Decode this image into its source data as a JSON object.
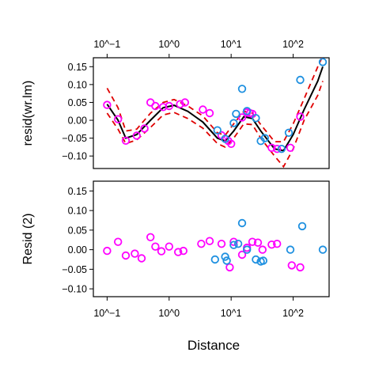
{
  "chart_data": {
    "type": "scatter",
    "xlabel": "Distance",
    "x_scale": "log10",
    "xlim": [
      0.06,
      380
    ],
    "x_ticks": [
      {
        "value": 0.1,
        "label": "10^−1"
      },
      {
        "value": 1,
        "label": "10^0"
      },
      {
        "value": 10,
        "label": "10^1"
      },
      {
        "value": 100,
        "label": "10^2"
      }
    ],
    "colors": {
      "series_a": "#ff00ff",
      "series_b": "#1e90e0",
      "fit": "#000000",
      "band": "#e00000"
    },
    "panels": [
      {
        "ylabel": "resid(wr.lm)",
        "ylim": [
          -0.135,
          0.175
        ],
        "y_ticks": [
          {
            "value": 0.15,
            "label": "0.15"
          },
          {
            "value": 0.1,
            "label": "0.10"
          },
          {
            "value": 0.05,
            "label": "0.05"
          },
          {
            "value": 0,
            "label": "0.00"
          },
          {
            "value": -0.05,
            "label": "−0.05"
          },
          {
            "value": -0.1,
            "label": "−0.10"
          }
        ],
        "series": [
          {
            "key": "magenta",
            "points": [
              [
                0.1,
                0.043
              ],
              [
                0.15,
                0.003
              ],
              [
                0.2,
                -0.057
              ],
              [
                0.3,
                -0.043
              ],
              [
                0.4,
                -0.023
              ],
              [
                0.5,
                0.05
              ],
              [
                0.6,
                0.04
              ],
              [
                0.8,
                0.037
              ],
              [
                1.0,
                0.04
              ],
              [
                1.5,
                0.045
              ],
              [
                1.8,
                0.05
              ],
              [
                3.5,
                0.03
              ],
              [
                4.5,
                0.02
              ],
              [
                7,
                -0.042
              ],
              [
                9,
                -0.058
              ],
              [
                10,
                -0.066
              ],
              [
                15,
                0.008
              ],
              [
                18,
                0.022
              ],
              [
                20,
                0.02
              ],
              [
                22,
                0.018
              ],
              [
                45,
                -0.077
              ],
              [
                55,
                -0.08
              ],
              [
                90,
                -0.077
              ],
              [
                130,
                0.01
              ]
            ]
          },
          {
            "key": "blue",
            "points": [
              [
                6,
                -0.028
              ],
              [
                8,
                -0.052
              ],
              [
                11,
                -0.008
              ],
              [
                12,
                0.018
              ],
              [
                15,
                0.088
              ],
              [
                18,
                0.026
              ],
              [
                25,
                0.006
              ],
              [
                30,
                -0.058
              ],
              [
                35,
                -0.05
              ],
              [
                65,
                -0.08
              ],
              [
                85,
                -0.035
              ],
              [
                130,
                0.113
              ],
              [
                300,
                0.163
              ]
            ]
          }
        ],
        "fit_line": [
          [
            0.1,
            0.045
          ],
          [
            0.15,
            0.0
          ],
          [
            0.2,
            -0.05
          ],
          [
            0.3,
            -0.04
          ],
          [
            0.5,
            0.0
          ],
          [
            0.8,
            0.035
          ],
          [
            1.2,
            0.042
          ],
          [
            2,
            0.025
          ],
          [
            3.5,
            -0.005
          ],
          [
            6,
            -0.05
          ],
          [
            8,
            -0.058
          ],
          [
            11,
            -0.03
          ],
          [
            16,
            0.01
          ],
          [
            22,
            0.005
          ],
          [
            30,
            -0.03
          ],
          [
            50,
            -0.08
          ],
          [
            70,
            -0.085
          ],
          [
            100,
            -0.04
          ],
          [
            150,
            0.03
          ],
          [
            250,
            0.11
          ],
          [
            300,
            0.15
          ]
        ],
        "band_upper": [
          [
            0.1,
            0.09
          ],
          [
            0.15,
            0.035
          ],
          [
            0.2,
            -0.03
          ],
          [
            0.3,
            -0.025
          ],
          [
            0.5,
            0.02
          ],
          [
            0.8,
            0.05
          ],
          [
            1.2,
            0.058
          ],
          [
            2,
            0.04
          ],
          [
            3.5,
            0.012
          ],
          [
            6,
            -0.035
          ],
          [
            8,
            -0.042
          ],
          [
            11,
            -0.01
          ],
          [
            16,
            0.025
          ],
          [
            22,
            0.02
          ],
          [
            30,
            -0.012
          ],
          [
            50,
            -0.06
          ],
          [
            70,
            -0.06
          ],
          [
            100,
            -0.01
          ],
          [
            150,
            0.06
          ],
          [
            250,
            0.15
          ],
          [
            300,
            0.18
          ]
        ],
        "band_lower": [
          [
            0.1,
            0.02
          ],
          [
            0.15,
            -0.025
          ],
          [
            0.2,
            -0.065
          ],
          [
            0.3,
            -0.055
          ],
          [
            0.5,
            -0.02
          ],
          [
            0.8,
            0.015
          ],
          [
            1.2,
            0.022
          ],
          [
            2,
            0.005
          ],
          [
            3.5,
            -0.022
          ],
          [
            6,
            -0.065
          ],
          [
            8,
            -0.075
          ],
          [
            11,
            -0.05
          ],
          [
            16,
            -0.01
          ],
          [
            22,
            -0.012
          ],
          [
            30,
            -0.05
          ],
          [
            50,
            -0.1
          ],
          [
            70,
            -0.13
          ],
          [
            100,
            -0.08
          ],
          [
            150,
            0.0
          ],
          [
            250,
            0.07
          ],
          [
            300,
            0.11
          ]
        ]
      },
      {
        "ylabel": "Resid (2)",
        "ylim": [
          -0.12,
          0.175
        ],
        "y_ticks": [
          {
            "value": 0.15,
            "label": "0.15"
          },
          {
            "value": 0.1,
            "label": "0.10"
          },
          {
            "value": 0.05,
            "label": "0.05"
          },
          {
            "value": 0,
            "label": "0.00"
          },
          {
            "value": -0.05,
            "label": "−0.05"
          },
          {
            "value": -0.1,
            "label": "−0.10"
          }
        ],
        "series": [
          {
            "key": "magenta",
            "points": [
              [
                0.1,
                -0.003
              ],
              [
                0.15,
                0.02
              ],
              [
                0.2,
                -0.015
              ],
              [
                0.28,
                -0.01
              ],
              [
                0.36,
                -0.022
              ],
              [
                0.5,
                0.032
              ],
              [
                0.6,
                0.008
              ],
              [
                0.75,
                -0.004
              ],
              [
                1.0,
                0.008
              ],
              [
                1.4,
                -0.006
              ],
              [
                1.7,
                -0.003
              ],
              [
                3.3,
                0.015
              ],
              [
                4.5,
                0.022
              ],
              [
                7,
                0.015
              ],
              [
                9.5,
                -0.045
              ],
              [
                11,
                0.02
              ],
              [
                15,
                -0.013
              ],
              [
                18,
                0.005
              ],
              [
                22,
                0.02
              ],
              [
                27,
                0.018
              ],
              [
                32,
                0.0
              ],
              [
                45,
                0.013
              ],
              [
                55,
                0.015
              ],
              [
                95,
                -0.04
              ],
              [
                130,
                -0.045
              ]
            ]
          },
          {
            "key": "blue",
            "points": [
              [
                5.5,
                -0.025
              ],
              [
                8,
                -0.018
              ],
              [
                8.5,
                -0.028
              ],
              [
                11,
                0.012
              ],
              [
                13,
                0.015
              ],
              [
                15,
                0.068
              ],
              [
                18,
                0.0
              ],
              [
                25,
                -0.025
              ],
              [
                30,
                -0.03
              ],
              [
                33,
                -0.028
              ],
              [
                90,
                0.0
              ],
              [
                140,
                0.06
              ],
              [
                300,
                0.0
              ]
            ]
          }
        ]
      }
    ]
  }
}
